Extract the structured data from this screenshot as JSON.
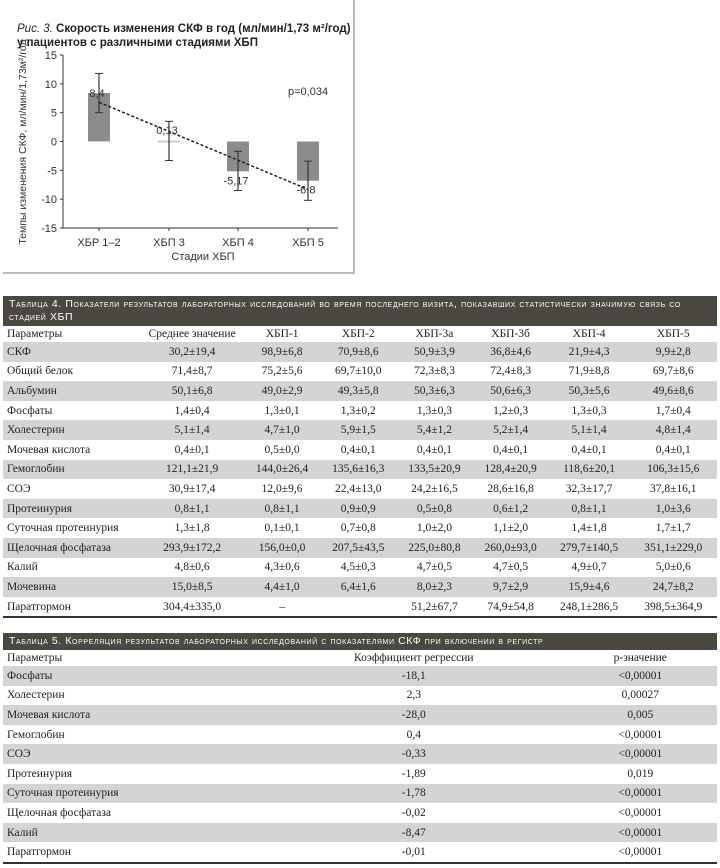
{
  "figure": {
    "label": "Рис. 3.",
    "title": "Скорость изменения СКФ в год (мл/мин/1,73 м²/год) у пациентов с различными стадиями ХБП"
  },
  "chart_data": {
    "type": "bar",
    "categories": [
      "ХБР 1–2",
      "ХБП 3",
      "ХБП 4",
      "ХБП 5"
    ],
    "values": [
      8.4,
      0.13,
      -5.17,
      -6.8
    ],
    "value_labels": [
      "8,4",
      "0,13",
      "-5,17",
      "-6,8"
    ],
    "error_bars": [
      [
        5.0,
        11.8
      ],
      [
        -3.3,
        3.5
      ],
      [
        -8.5,
        -1.7
      ],
      [
        -10.2,
        -3.4
      ]
    ],
    "trend_line": [
      6.8,
      -8.3
    ],
    "xlabel": "Стадии ХБП",
    "ylabel": "Темпы изменения СКФ, мл/мин/1,73м²/год",
    "ylim": [
      -15,
      15
    ],
    "yticks": [
      15,
      10,
      5,
      0,
      -5,
      -10,
      -15
    ],
    "annotation": "p=0,034",
    "grid": false,
    "bar_color": "#8c8c8c"
  },
  "table4": {
    "title": "Таблица 4. Показатели результатов лабораторных исследований во время последнего визита, показавших статистически значимую связь со стадией ХБП",
    "headers": [
      "Параметры",
      "Среднее значение",
      "ХБП-1",
      "ХБП-2",
      "ХБП-3а",
      "ХБП-3б",
      "ХБП-4",
      "ХБП-5"
    ],
    "rows": [
      [
        "СКФ",
        "30,2±19,4",
        "98,9±6,8",
        "70,9±8,6",
        "50,9±3,9",
        "36,8±4,6",
        "21,9±4,3",
        "9,9±2,8"
      ],
      [
        "Общий белок",
        "71,4±8,7",
        "75,2±5,6",
        "69,7±10,0",
        "72,3±8,3",
        "72,4±8,3",
        "71,9±8,8",
        "69,7±8,6"
      ],
      [
        "Альбумин",
        "50,1±6,8",
        "49,0±2,9",
        "49,3±5,8",
        "50,3±6,3",
        "50,6±6,3",
        "50,3±5,6",
        "49,6±8,6"
      ],
      [
        "Фосфаты",
        "1,4±0,4",
        "1,3±0,1",
        "1,3±0,2",
        "1,3±0,3",
        "1,2±0,3",
        "1,3±0,3",
        "1,7±0,4"
      ],
      [
        "Холестерин",
        "5,1±1,4",
        "4,7±1,0",
        "5,9±1,5",
        "5,4±1,2",
        "5,2±1,4",
        "5,1±1,4",
        "4,8±1,4"
      ],
      [
        "Мочевая кислота",
        "0,4±0,1",
        "0,5±0,0",
        "0,4±0,1",
        "0,4±0,1",
        "0,4±0,1",
        "0,4±0,1",
        "0,4±0,1"
      ],
      [
        "Гемоглобин",
        "121,1±21,9",
        "144,0±26,4",
        "135,6±16,3",
        "133,5±20,9",
        "128,4±20,9",
        "118,6±20,1",
        "106,3±15,6"
      ],
      [
        "СОЭ",
        "30,9±17,4",
        "12,0±9,6",
        "22,4±13,0",
        "24,2±16,5",
        "28,6±16,8",
        "32,3±17,7",
        "37,8±16,1"
      ],
      [
        "Протеинурия",
        "0,8±1,1",
        "0,8±1,1",
        "0,9±0,9",
        "0,5±0,8",
        "0,6±1,2",
        "0,8±1,1",
        "1,0±3,6"
      ],
      [
        "Суточная протеинурия",
        "1,3±1,8",
        "0,1±0,1",
        "0,7±0,8",
        "1,0±2,0",
        "1,1±2,0",
        "1,4±1,8",
        "1,7±1,7"
      ],
      [
        "Щелочная фосфатаза",
        "293,9±172,2",
        "156,0±0,0",
        "207,5±43,5",
        "225,0±80,8",
        "260,0±93,0",
        "279,7±140,5",
        "351,1±229,0"
      ],
      [
        "Калий",
        "4,8±0,6",
        "4,3±0,6",
        "4,5±0,3",
        "4,7±0,5",
        "4,7±0,5",
        "4,9±0,7",
        "5,0±0,6"
      ],
      [
        "Мочевина",
        "15,0±8,5",
        "4,4±1,0",
        "6,4±1,6",
        "8,0±2,3",
        "9,7±2,9",
        "15,9±4,6",
        "24,7±8,2"
      ],
      [
        "Паратгормон",
        "304,4±335,0",
        "–",
        "",
        "51,2±67,7",
        "74,9±54,8",
        "248,1±286,5",
        "398,5±364,9"
      ]
    ]
  },
  "table5": {
    "title": "Таблица 5. Корреляция результатов лабораторных исследований с показателями СКФ при включении в регистр",
    "headers": [
      "Параметры",
      "Коэффициент регрессии",
      "p-значение"
    ],
    "rows": [
      [
        "Фосфаты",
        "-18,1",
        "<0,00001"
      ],
      [
        "Холестерин",
        "2,3",
        "0,00027"
      ],
      [
        "Мочевая кислота",
        "-28,0",
        "0,005"
      ],
      [
        "Гемоглобин",
        "0,4",
        "<0,00001"
      ],
      [
        "СОЭ",
        "-0,33",
        "<0,00001"
      ],
      [
        "Протеинурия",
        "-1,89",
        "0,019"
      ],
      [
        "Суточная протеинурия",
        "-1,78",
        "<0,00001"
      ],
      [
        "Щелочная фосфатаза",
        "-0,02",
        "<0,00001"
      ],
      [
        "Калий",
        "-8,47",
        "<0,00001"
      ],
      [
        "Паратгормон",
        "-0,01",
        "<0,00001"
      ]
    ]
  }
}
